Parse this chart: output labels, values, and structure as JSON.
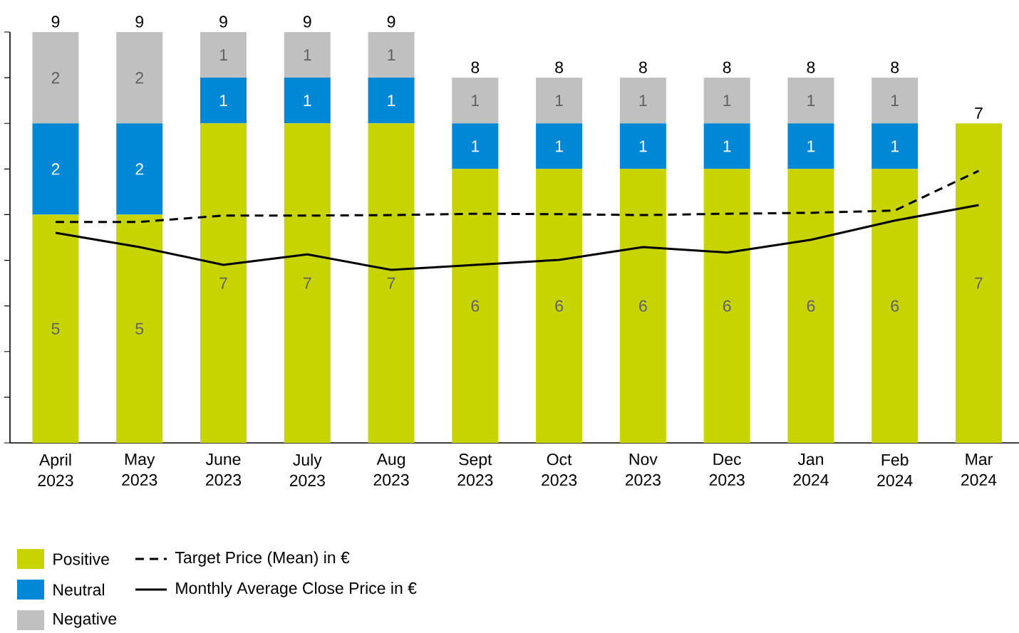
{
  "chart_data": {
    "type": "bar",
    "stacked": true,
    "categories": [
      "April 2023",
      "May 2023",
      "June 2023",
      "July 2023",
      "Aug 2023",
      "Sept 2023",
      "Oct 2023",
      "Nov 2023",
      "Dec 2023",
      "Jan 2024",
      "Feb 2024",
      "Mar 2024"
    ],
    "series": [
      {
        "name": "Positive",
        "color": "#c8d400",
        "values": [
          5,
          5,
          7,
          7,
          7,
          6,
          6,
          6,
          6,
          6,
          6,
          7
        ],
        "value_labels": [
          "5",
          "5",
          "7",
          "7",
          "7",
          "6",
          "6",
          "6",
          "6",
          "6",
          "6",
          "7"
        ]
      },
      {
        "name": "Neutral",
        "color": "#0088d6",
        "values": [
          2,
          2,
          1,
          1,
          1,
          1,
          1,
          1,
          1,
          1,
          1,
          null
        ],
        "value_labels": [
          "2",
          "2",
          "1",
          "1",
          "1",
          "1",
          "1",
          "1",
          "1",
          "1",
          "1",
          null
        ]
      },
      {
        "name": "Negative",
        "color": "#c0c0c0",
        "values": [
          2,
          2,
          1,
          1,
          1,
          1,
          1,
          1,
          1,
          1,
          1,
          null
        ],
        "value_labels": [
          "2",
          "2",
          "1",
          "1",
          "1",
          "1",
          "1",
          "1",
          "1",
          "1",
          "1",
          null
        ]
      },
      {
        "name": "Target Price (Mean) in €",
        "type": "line",
        "line_style": "dashed",
        "color": "#000000",
        "values": [
          4.84,
          4.84,
          4.98,
          4.98,
          4.99,
          5.02,
          5.01,
          4.99,
          5.02,
          5.04,
          5.09,
          5.96
        ]
      },
      {
        "name": "Monthly Average Close Price in €",
        "type": "line",
        "line_style": "solid",
        "color": "#000000",
        "values": [
          4.6,
          4.29,
          3.9,
          4.13,
          3.79,
          3.9,
          4.01,
          4.29,
          4.17,
          4.45,
          4.87,
          5.21
        ]
      }
    ],
    "tick_labels": "x",
    "totals": [
      "9",
      "9",
      "9",
      "9",
      "9",
      "8",
      "8",
      "8",
      "8",
      "8",
      "8",
      "7"
    ],
    "legend": "bottom left"
  }
}
